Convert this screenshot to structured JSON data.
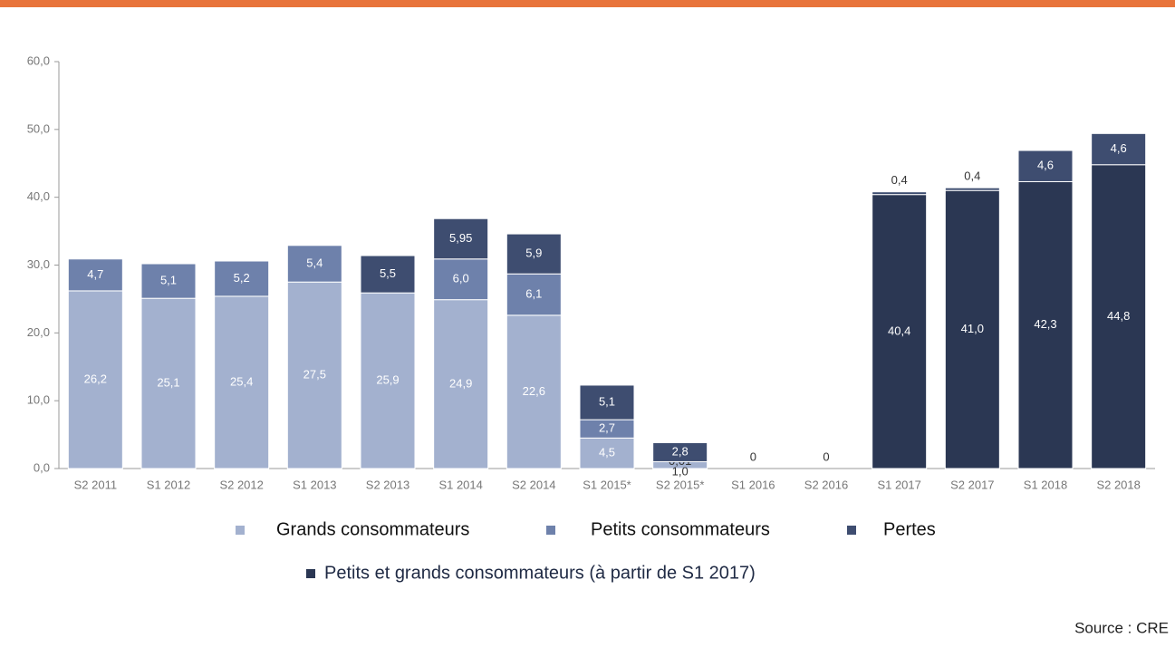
{
  "chart_data": {
    "type": "bar",
    "stacked": true,
    "categories": [
      "S2 2011",
      "S1 2012",
      "S2 2012",
      "S1 2013",
      "S2 2013",
      "S1 2014",
      "S2 2014",
      "S1 2015*",
      "S2 2015*",
      "S1 2016",
      "S2 2016",
      "S1 2017",
      "S2 2017",
      "S1 2018",
      "S2 2018"
    ],
    "series": [
      {
        "name": "Grands consommateurs",
        "color": "#a3b1cf",
        "values": [
          26.2,
          25.1,
          25.4,
          27.5,
          25.9,
          24.9,
          22.6,
          4.5,
          1.0,
          0,
          0,
          null,
          null,
          null,
          null
        ],
        "value_labels": [
          "26,2",
          "25,1",
          "25,4",
          "27,5",
          "25,9",
          "24,9",
          "22,6",
          "4,5",
          "1,0",
          "0",
          "0",
          null,
          null,
          null,
          null
        ]
      },
      {
        "name": "Petits consommateurs",
        "color": "#6e81ab",
        "values": [
          4.7,
          5.1,
          5.2,
          5.4,
          null,
          6.0,
          6.1,
          2.7,
          0.01,
          null,
          null,
          null,
          null,
          null,
          null
        ],
        "value_labels": [
          "4,7",
          "5,1",
          "5,2",
          "5,4",
          null,
          "6,0",
          "6,1",
          "2,7",
          "0,01",
          null,
          null,
          null,
          null,
          null,
          null
        ]
      },
      {
        "name": "Petits et grands consommateurs (à partir de S1 2017)",
        "color": "#2b3753",
        "values": [
          null,
          null,
          null,
          null,
          null,
          null,
          null,
          null,
          null,
          null,
          null,
          40.4,
          41.0,
          42.3,
          44.8
        ],
        "value_labels": [
          null,
          null,
          null,
          null,
          null,
          null,
          null,
          null,
          null,
          null,
          null,
          "40,4",
          "41,0",
          "42,3",
          "44,8"
        ]
      },
      {
        "name": "Pertes",
        "color": "#3e4d70",
        "values": [
          null,
          null,
          null,
          null,
          5.5,
          5.95,
          5.9,
          5.1,
          2.8,
          null,
          null,
          0.4,
          0.4,
          4.6,
          4.6
        ],
        "value_labels": [
          null,
          null,
          null,
          null,
          "5,5",
          "5,95",
          "5,9",
          "5,1",
          "2,8",
          null,
          null,
          "0,4",
          "0,4",
          "4,6",
          "4,6"
        ]
      }
    ],
    "ylim": [
      0,
      60
    ],
    "yticks": [
      {
        "value": 0,
        "label": "0,0"
      },
      {
        "value": 10,
        "label": "10,0"
      },
      {
        "value": 20,
        "label": "20,0"
      },
      {
        "value": 30,
        "label": "30,0"
      },
      {
        "value": 40,
        "label": "40,0"
      },
      {
        "value": 50,
        "label": "50,0"
      },
      {
        "value": 60,
        "label": "60,0"
      }
    ],
    "grid": false,
    "source": "Source : CRE"
  }
}
